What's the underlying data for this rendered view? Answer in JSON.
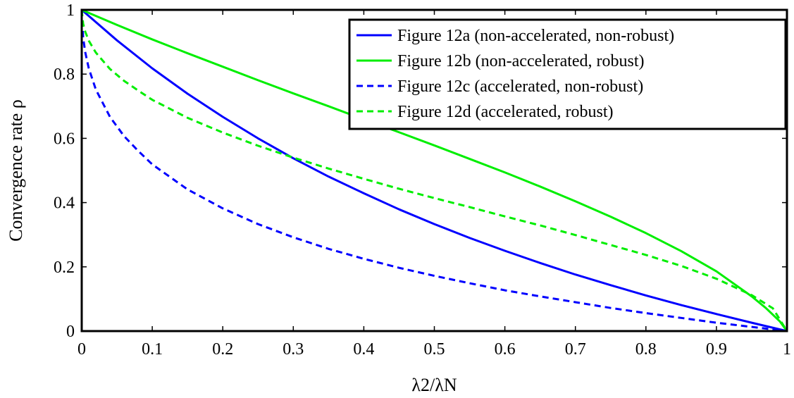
{
  "chart_data": {
    "type": "line",
    "title": "",
    "xlabel": "λ2/λN",
    "ylabel": "Convergence rate ρ",
    "xlim": [
      0,
      1
    ],
    "ylim": [
      0,
      1
    ],
    "grid": false,
    "legend_position": "top-right",
    "xticks": [
      "0",
      "0.1",
      "0.2",
      "0.3",
      "0.4",
      "0.5",
      "0.6",
      "0.7",
      "0.8",
      "0.9",
      "1"
    ],
    "yticks": [
      "0",
      "0.2",
      "0.4",
      "0.6",
      "0.8",
      "1"
    ],
    "series": [
      {
        "name": "Figure 12a (non-accelerated, non-robust)",
        "color": "#0000ff",
        "dash": "solid",
        "x": [
          0,
          0.05,
          0.1,
          0.15,
          0.2,
          0.25,
          0.3,
          0.35,
          0.4,
          0.45,
          0.5,
          0.55,
          0.6,
          0.65,
          0.7,
          0.75,
          0.8,
          0.85,
          0.9,
          0.95,
          1
        ],
        "y": [
          1,
          0.905,
          0.818,
          0.739,
          0.667,
          0.6,
          0.538,
          0.481,
          0.429,
          0.379,
          0.333,
          0.29,
          0.25,
          0.212,
          0.176,
          0.143,
          0.111,
          0.081,
          0.053,
          0.026,
          0
        ]
      },
      {
        "name": "Figure 12b (non-accelerated, robust)",
        "color": "#00ee00",
        "dash": "solid",
        "x": [
          0,
          0.05,
          0.1,
          0.15,
          0.2,
          0.25,
          0.3,
          0.35,
          0.4,
          0.45,
          0.5,
          0.55,
          0.6,
          0.65,
          0.7,
          0.75,
          0.8,
          0.85,
          0.9,
          0.95,
          0.97,
          0.99,
          1
        ],
        "y": [
          1,
          0.953,
          0.908,
          0.865,
          0.823,
          0.781,
          0.74,
          0.7,
          0.659,
          0.619,
          0.578,
          0.536,
          0.494,
          0.45,
          0.404,
          0.356,
          0.305,
          0.249,
          0.186,
          0.108,
          0.072,
          0.03,
          0
        ]
      },
      {
        "name": "Figure 12c (accelerated, non-robust)",
        "color": "#0000ff",
        "dash": "dashed",
        "x": [
          0,
          0.002,
          0.005,
          0.01,
          0.02,
          0.04,
          0.06,
          0.08,
          0.1,
          0.15,
          0.2,
          0.25,
          0.3,
          0.35,
          0.4,
          0.45,
          0.5,
          0.55,
          0.6,
          0.65,
          0.7,
          0.75,
          0.8,
          0.85,
          0.9,
          0.95,
          1
        ],
        "y": [
          1,
          0.914,
          0.868,
          0.818,
          0.752,
          0.667,
          0.607,
          0.561,
          0.519,
          0.441,
          0.382,
          0.333,
          0.292,
          0.256,
          0.225,
          0.197,
          0.172,
          0.149,
          0.127,
          0.108,
          0.09,
          0.072,
          0.056,
          0.041,
          0.026,
          0.013,
          0
        ]
      },
      {
        "name": "Figure 12d (accelerated, robust)",
        "color": "#00ee00",
        "dash": "dashed",
        "x": [
          0,
          0.002,
          0.005,
          0.01,
          0.02,
          0.04,
          0.06,
          0.08,
          0.1,
          0.15,
          0.2,
          0.25,
          0.3,
          0.35,
          0.4,
          0.45,
          0.5,
          0.55,
          0.6,
          0.65,
          0.7,
          0.75,
          0.8,
          0.85,
          0.9,
          0.95,
          0.98,
          1
        ],
        "y": [
          1,
          0.957,
          0.932,
          0.904,
          0.867,
          0.816,
          0.779,
          0.749,
          0.72,
          0.664,
          0.618,
          0.577,
          0.54,
          0.506,
          0.474,
          0.443,
          0.414,
          0.386,
          0.357,
          0.329,
          0.299,
          0.268,
          0.237,
          0.203,
          0.163,
          0.112,
          0.071,
          0
        ]
      }
    ]
  }
}
